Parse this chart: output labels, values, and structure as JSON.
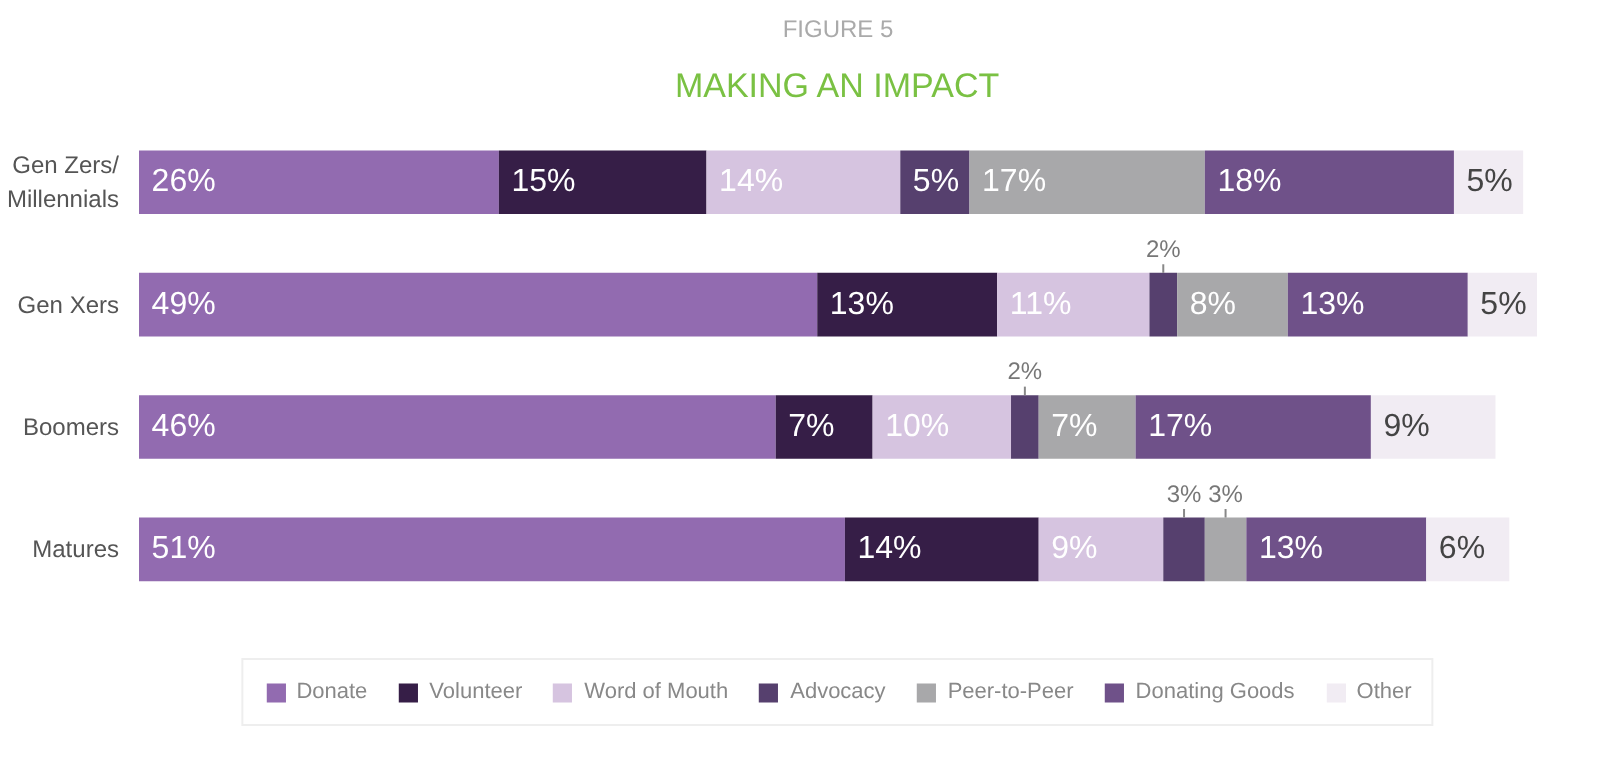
{
  "chart_data": {
    "type": "bar",
    "orientation": "horizontal",
    "stacked": true,
    "grid": false,
    "legend": "bottom",
    "tick_labels": "y",
    "subtitle": "FIGURE 5",
    "title": "MAKING AN IMPACT",
    "categories": [
      "Gen Zers/ Millennials",
      "Gen Xers",
      "Boomers",
      "Matures"
    ],
    "series": [
      {
        "name": "Donate",
        "color": "#926bb0",
        "values": [
          26,
          49,
          46,
          51
        ],
        "value_labels": [
          "26%",
          "49%",
          "46%",
          "51%"
        ]
      },
      {
        "name": "Volunteer",
        "color": "#361e47",
        "values": [
          15,
          13,
          7,
          14
        ],
        "value_labels": [
          "15%",
          "13%",
          "7%",
          "14%"
        ]
      },
      {
        "name": "Word of Mouth",
        "color": "#d6c4e0",
        "values": [
          14,
          11,
          10,
          9
        ],
        "value_labels": [
          "14%",
          "11%",
          "10%",
          "9%"
        ]
      },
      {
        "name": "Advocacy",
        "color": "#56406e",
        "values": [
          5,
          2,
          2,
          3
        ],
        "value_labels": [
          "5%",
          "2%",
          "2%",
          "3%"
        ]
      },
      {
        "name": "Peer-to-Peer",
        "color": "#a8a8aa",
        "values": [
          17,
          8,
          7,
          3
        ],
        "value_labels": [
          "17%",
          "8%",
          "7%",
          "3%"
        ]
      },
      {
        "name": "Donating Goods",
        "color": "#6f5189",
        "values": [
          18,
          13,
          17,
          13
        ],
        "value_labels": [
          "18%",
          "13%",
          "17%",
          "13%"
        ]
      },
      {
        "name": "Other",
        "color": "#f1ecf3",
        "values": [
          5,
          5,
          9,
          6
        ],
        "value_labels": [
          "5%",
          "5%",
          "9%",
          "6%"
        ]
      }
    ]
  }
}
